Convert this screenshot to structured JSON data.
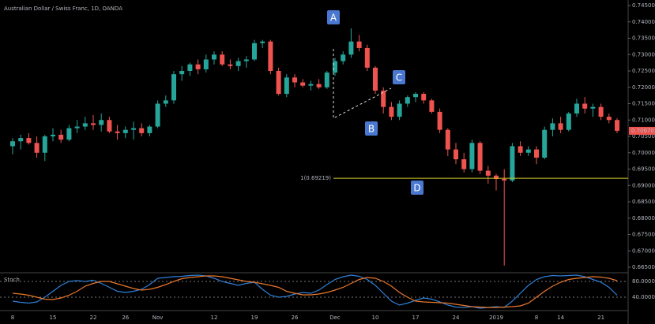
{
  "chart_data": [
    {
      "type": "candlestick",
      "title": "Australian Dollar / Swiss Franc, 1D, OANDA",
      "up_color": "#26a69a",
      "down_color": "#ef5350",
      "categories": [
        "8",
        null,
        null,
        null,
        null,
        "15",
        null,
        null,
        null,
        null,
        "22",
        null,
        null,
        null,
        "26",
        null,
        null,
        null,
        "Nov",
        null,
        null,
        null,
        null,
        null,
        null,
        "12",
        null,
        null,
        null,
        null,
        "19",
        null,
        null,
        null,
        null,
        "26",
        null,
        null,
        null,
        null,
        "Dec",
        null,
        null,
        null,
        null,
        "10",
        null,
        null,
        null,
        null,
        "17",
        null,
        null,
        null,
        null,
        "24",
        null,
        null,
        null,
        null,
        "2019",
        null,
        null,
        null,
        null,
        "8",
        null,
        null,
        "14",
        null,
        null,
        null,
        null,
        "21",
        null,
        null
      ],
      "open": [
        0.702,
        0.7035,
        0.7045,
        0.703,
        0.7,
        0.705,
        0.7055,
        0.704,
        0.7075,
        0.708,
        0.709,
        0.7085,
        0.71,
        0.7065,
        0.706,
        0.707,
        0.7075,
        0.706,
        0.708,
        0.715,
        0.716,
        0.724,
        0.725,
        0.727,
        0.7255,
        0.7285,
        0.73,
        0.727,
        0.7265,
        0.728,
        0.7285,
        0.7335,
        0.734,
        0.725,
        0.718,
        0.723,
        0.7215,
        0.7205,
        0.721,
        0.72,
        0.7245,
        0.728,
        0.73,
        0.734,
        0.732,
        0.726,
        0.719,
        0.714,
        0.711,
        0.715,
        0.717,
        0.718,
        0.716,
        0.7125,
        0.707,
        0.701,
        0.698,
        0.695,
        0.703,
        0.6945,
        0.693,
        0.692,
        0.6915,
        0.702,
        0.7,
        0.701,
        0.6985,
        0.707,
        0.709,
        0.707,
        0.712,
        0.715,
        0.7135,
        0.714,
        0.711,
        0.71
      ],
      "high": [
        0.7045,
        0.7055,
        0.706,
        0.705,
        0.7055,
        0.7075,
        0.707,
        0.7085,
        0.71,
        0.711,
        0.7115,
        0.712,
        0.711,
        0.7085,
        0.708,
        0.7095,
        0.709,
        0.7085,
        0.716,
        0.7175,
        0.725,
        0.7265,
        0.7275,
        0.7285,
        0.73,
        0.731,
        0.731,
        0.7285,
        0.729,
        0.7295,
        0.7345,
        0.7345,
        0.7345,
        0.726,
        0.724,
        0.724,
        0.7225,
        0.722,
        0.7225,
        0.725,
        0.729,
        0.731,
        0.738,
        0.736,
        0.733,
        0.7265,
        0.72,
        0.7155,
        0.716,
        0.7175,
        0.7185,
        0.7185,
        0.7165,
        0.7135,
        0.7075,
        0.703,
        0.7,
        0.704,
        0.7035,
        0.696,
        0.6935,
        0.695,
        0.703,
        0.7035,
        0.702,
        0.702,
        0.708,
        0.7105,
        0.711,
        0.7125,
        0.7165,
        0.717,
        0.715,
        0.715,
        0.712,
        0.7105
      ],
      "low": [
        0.6995,
        0.701,
        0.7025,
        0.6985,
        0.6975,
        0.7035,
        0.703,
        0.7035,
        0.706,
        0.707,
        0.707,
        0.7065,
        0.706,
        0.704,
        0.7045,
        0.704,
        0.705,
        0.705,
        0.7075,
        0.714,
        0.715,
        0.722,
        0.7235,
        0.724,
        0.7245,
        0.727,
        0.7265,
        0.7255,
        0.725,
        0.726,
        0.728,
        0.732,
        0.724,
        0.7175,
        0.717,
        0.72,
        0.72,
        0.719,
        0.7195,
        0.7195,
        0.7235,
        0.727,
        0.729,
        0.731,
        0.725,
        0.718,
        0.712,
        0.71,
        0.71,
        0.714,
        0.7155,
        0.715,
        0.712,
        0.706,
        0.699,
        0.6965,
        0.694,
        0.694,
        0.6935,
        0.6905,
        0.6885,
        0.6655,
        0.691,
        0.699,
        0.699,
        0.6965,
        0.698,
        0.705,
        0.706,
        0.7065,
        0.711,
        0.712,
        0.711,
        0.71,
        0.709,
        0.706
      ],
      "close": [
        0.7035,
        0.7045,
        0.703,
        0.7,
        0.705,
        0.7055,
        0.704,
        0.7075,
        0.708,
        0.709,
        0.7085,
        0.71,
        0.7065,
        0.706,
        0.707,
        0.7075,
        0.706,
        0.708,
        0.715,
        0.716,
        0.724,
        0.725,
        0.727,
        0.7255,
        0.7285,
        0.73,
        0.727,
        0.7265,
        0.728,
        0.7285,
        0.7335,
        0.734,
        0.725,
        0.718,
        0.723,
        0.7215,
        0.7205,
        0.721,
        0.72,
        0.7245,
        0.728,
        0.73,
        0.734,
        0.732,
        0.726,
        0.719,
        0.714,
        0.711,
        0.715,
        0.717,
        0.718,
        0.716,
        0.7125,
        0.707,
        0.701,
        0.698,
        0.695,
        0.703,
        0.6945,
        0.693,
        0.692,
        0.6915,
        0.702,
        0.7,
        0.701,
        0.6985,
        0.707,
        0.709,
        0.707,
        0.712,
        0.715,
        0.7135,
        0.714,
        0.711,
        0.71,
        0.7067
      ],
      "ylim": [
        0.665,
        0.745
      ],
      "yticks": [
        {
          "value": 0.745,
          "label": "0.74500"
        },
        {
          "value": 0.74,
          "label": "0.74000"
        },
        {
          "value": 0.735,
          "label": "0.73500"
        },
        {
          "value": 0.73,
          "label": "0.73000"
        },
        {
          "value": 0.725,
          "label": "0.72500"
        },
        {
          "value": 0.72,
          "label": "0.72000"
        },
        {
          "value": 0.715,
          "label": "0.71500"
        },
        {
          "value": 0.71,
          "label": "0.71000"
        },
        {
          "value": 0.705,
          "label": "0.70500"
        },
        {
          "value": 0.7,
          "label": "0.70000"
        },
        {
          "value": 0.695,
          "label": "0.69500"
        },
        {
          "value": 0.69,
          "label": "0.69000"
        },
        {
          "value": 0.685,
          "label": "0.68500"
        },
        {
          "value": 0.68,
          "label": "0.68000"
        },
        {
          "value": 0.675,
          "label": "0.67500"
        },
        {
          "value": 0.67,
          "label": "0.67000"
        },
        {
          "value": 0.665,
          "label": "0.66500"
        }
      ],
      "level": {
        "value": 0.69219,
        "label": "1(0.69219)",
        "color": "#d4c92a"
      },
      "last_price": {
        "value": 0.7067,
        "label": "0.70670",
        "color": "#ef5350"
      },
      "annotations": [
        "A",
        "B",
        "C",
        "D"
      ]
    },
    {
      "type": "line",
      "title": "Stoch",
      "series": [
        {
          "color": "#2f7fd6",
          "values": [
            30,
            27,
            25,
            28,
            40,
            55,
            70,
            80,
            82,
            80,
            83,
            75,
            65,
            55,
            52,
            55,
            60,
            72,
            88,
            90,
            92,
            93,
            95,
            96,
            94,
            88,
            80,
            75,
            70,
            75,
            78,
            60,
            45,
            40,
            42,
            48,
            52,
            50,
            58,
            72,
            85,
            92,
            96,
            93,
            85,
            70,
            50,
            30,
            20,
            25,
            32,
            38,
            35,
            28,
            20,
            15,
            14,
            16,
            12,
            14,
            16,
            14,
            30,
            50,
            70,
            85,
            92,
            95,
            94,
            95,
            96,
            92,
            85,
            78,
            65,
            45
          ]
        },
        {
          "color": "#e8772b",
          "values": [
            50,
            48,
            45,
            40,
            35,
            34,
            38,
            45,
            55,
            68,
            75,
            80,
            80,
            74,
            68,
            62,
            58,
            60,
            65,
            72,
            80,
            87,
            90,
            92,
            94,
            94,
            92,
            88,
            84,
            80,
            78,
            74,
            70,
            65,
            55,
            50,
            46,
            46,
            48,
            52,
            58,
            65,
            75,
            85,
            90,
            88,
            80,
            68,
            52,
            40,
            30,
            28,
            27,
            26,
            25,
            22,
            19,
            16,
            15,
            14,
            14,
            15,
            16,
            18,
            25,
            40,
            55,
            68,
            78,
            85,
            88,
            90,
            92,
            91,
            88,
            82
          ]
        }
      ],
      "ylim": [
        10,
        98
      ],
      "yticks": [
        {
          "value": 80,
          "label": "80.0000"
        },
        {
          "value": 40,
          "label": "40.0000"
        }
      ]
    }
  ]
}
